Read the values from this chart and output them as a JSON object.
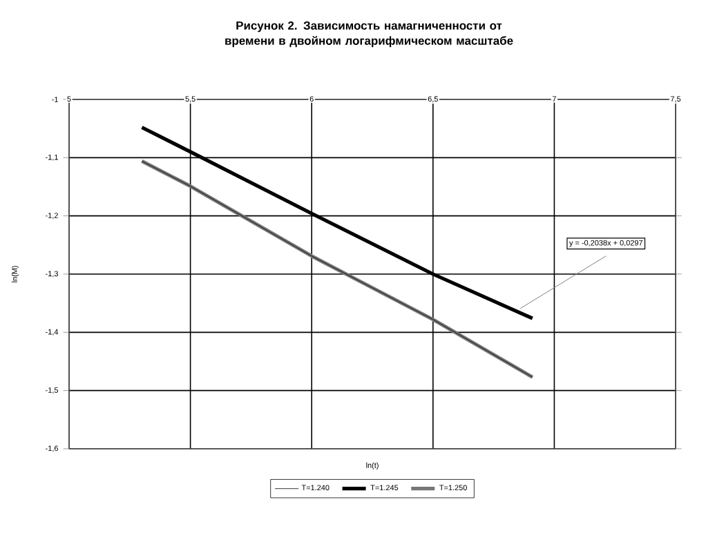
{
  "chart_data": {
    "type": "line",
    "title": "Рисунок  2. Зависимость намагниченности от времени в двойном логарифмическом масштабе",
    "xlabel": "ln(t)",
    "ylabel": "ln(M)",
    "xlim": [
      5,
      7.5
    ],
    "ylim": [
      -1.6,
      -1
    ],
    "xticks": [
      5,
      {
        "value": 5.5,
        "label": "5,5"
      },
      6,
      {
        "value": 6.5,
        "label": "6,5"
      },
      7,
      {
        "value": 7.5,
        "label": "7,5"
      }
    ],
    "yticks": [
      {
        "value": -1.6,
        "label": "-1,6"
      },
      {
        "value": -1.5,
        "label": "-1,5"
      },
      {
        "value": -1.4,
        "label": "-1,4"
      },
      {
        "value": -1.3,
        "label": "-1,3"
      },
      {
        "value": -1.2,
        "label": "-1,2"
      },
      {
        "value": -1.1,
        "label": "-1,1"
      },
      -1
    ],
    "x": [
      5.3,
      5.5,
      6.0,
      6.5,
      6.91
    ],
    "series": [
      {
        "name": "T=1.240",
        "color": "#000000",
        "values": [
          -1.106,
          -1.149,
          -1.269,
          -1.378,
          -1.477
        ]
      },
      {
        "name": "T=1.245",
        "color": "#000000",
        "values": [
          -1.048,
          -1.09,
          -1.196,
          -1.3,
          -1.376
        ]
      },
      {
        "name": "T=1.250",
        "color": "#777777",
        "values": [
          -1.106,
          -1.149,
          -1.269,
          -1.378,
          -1.477
        ]
      }
    ],
    "annotations": [
      {
        "text": "y = -0,2038x + 0,0297",
        "x": 6.86,
        "y": -1.359
      }
    ],
    "grid": true,
    "legend": "bottom",
    "marker": "none"
  }
}
